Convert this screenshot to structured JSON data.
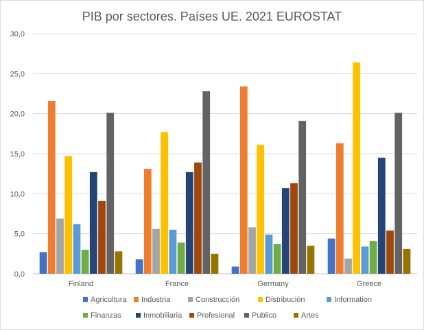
{
  "chart_data": {
    "type": "bar",
    "title": "PIB por sectores. Países UE. 2021 EUROSTAT",
    "xlabel": "",
    "ylabel": "",
    "ylim": [
      0,
      30
    ],
    "yticks": [
      0,
      5,
      10,
      15,
      20,
      25,
      30
    ],
    "ytick_labels": [
      "0,0",
      "5,0",
      "10,0",
      "15,0",
      "20,0",
      "25,0",
      "30,0"
    ],
    "grid": true,
    "legend_position": "bottom",
    "categories": [
      "Finland",
      "France",
      "Germany",
      "Greece"
    ],
    "series": [
      {
        "name": "Agricultura",
        "color": "#4472C4",
        "values": [
          2.7,
          1.8,
          0.9,
          4.4
        ]
      },
      {
        "name": "Industria",
        "color": "#ED7D31",
        "values": [
          21.6,
          13.1,
          23.4,
          16.3
        ]
      },
      {
        "name": "Construcción",
        "color": "#A5A5A5",
        "values": [
          6.9,
          5.6,
          5.8,
          1.9
        ]
      },
      {
        "name": "Distribución",
        "color": "#FFC000",
        "values": [
          14.7,
          17.7,
          16.1,
          26.4
        ]
      },
      {
        "name": "Information",
        "color": "#5B9BD5",
        "values": [
          6.2,
          5.5,
          4.9,
          3.4
        ]
      },
      {
        "name": "Finanzas",
        "color": "#70AD47",
        "values": [
          3.0,
          3.9,
          3.7,
          4.1
        ]
      },
      {
        "name": "Inmobiliaria",
        "color": "#264478",
        "values": [
          12.7,
          12.7,
          10.7,
          14.5
        ]
      },
      {
        "name": "Profesional",
        "color": "#9E480E",
        "values": [
          9.1,
          13.9,
          11.3,
          5.4
        ]
      },
      {
        "name": "Publico",
        "color": "#636363",
        "values": [
          20.1,
          22.8,
          19.1,
          20.1
        ]
      },
      {
        "name": "Artes",
        "color": "#997300",
        "values": [
          2.8,
          2.5,
          3.5,
          3.1
        ]
      }
    ]
  }
}
